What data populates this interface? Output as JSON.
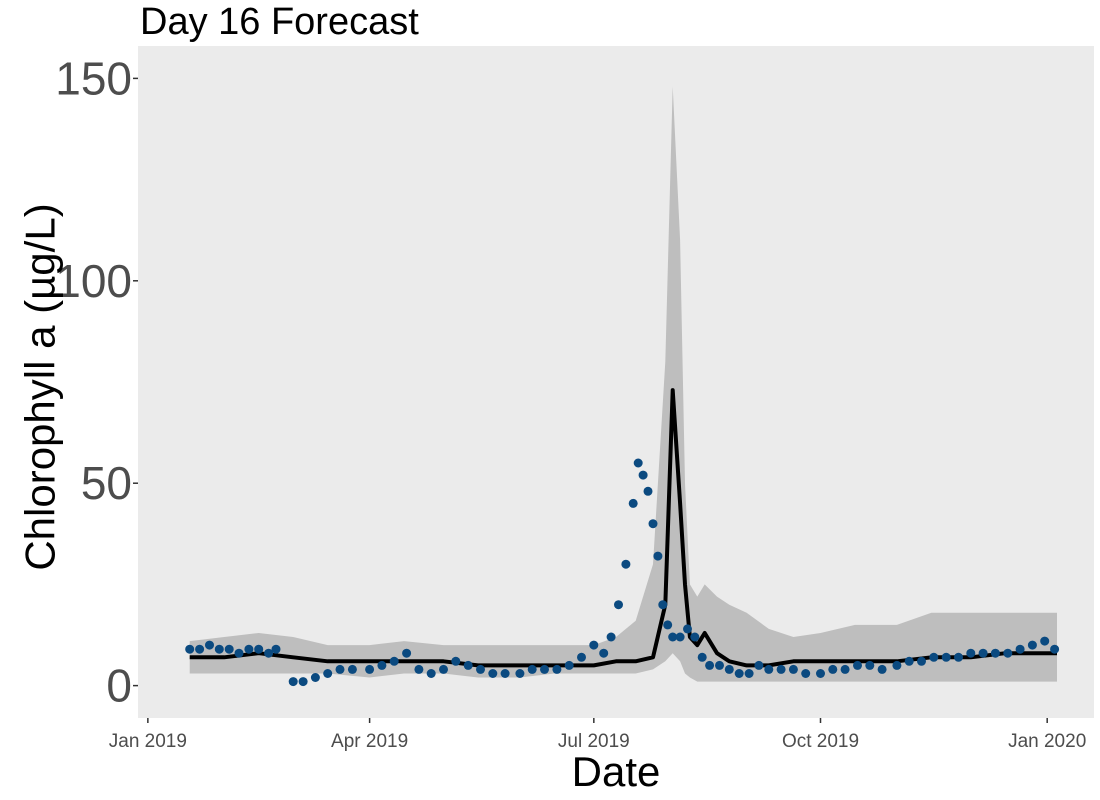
{
  "chart_data": {
    "type": "line",
    "title": "Day 16 Forecast",
    "xlabel": "Date",
    "ylabel": "Chlorophyll a (µg/L)",
    "xlim": [
      "2018-12-28",
      "2020-01-20"
    ],
    "ylim": [
      -8,
      158
    ],
    "grid": false,
    "legend": "none",
    "x_ticks": [
      {
        "date": "2019-01-01",
        "label": "Jan 2019"
      },
      {
        "date": "2019-04-01",
        "label": "Apr 2019"
      },
      {
        "date": "2019-07-01",
        "label": "Jul 2019"
      },
      {
        "date": "2019-10-01",
        "label": "Oct 2019"
      },
      {
        "date": "2020-01-01",
        "label": "Jan 2020"
      }
    ],
    "y_ticks": [
      {
        "value": 0,
        "label": "0"
      },
      {
        "value": 50,
        "label": "50"
      },
      {
        "value": 100,
        "label": "100"
      },
      {
        "value": 150,
        "label": "150"
      }
    ],
    "colors": {
      "panel": "#ebebeb",
      "band": "#bebebe",
      "line": "#000000",
      "points": "#0b4a80"
    },
    "series": [
      {
        "type": "area",
        "x": [
          "2019-01-18",
          "2019-02-01",
          "2019-02-15",
          "2019-03-01",
          "2019-03-15",
          "2019-04-01",
          "2019-04-15",
          "2019-05-01",
          "2019-05-15",
          "2019-06-01",
          "2019-06-15",
          "2019-07-01",
          "2019-07-10",
          "2019-07-18",
          "2019-07-25",
          "2019-07-30",
          "2019-08-02",
          "2019-08-05",
          "2019-08-07",
          "2019-08-09",
          "2019-08-12",
          "2019-08-15",
          "2019-08-20",
          "2019-08-25",
          "2019-09-01",
          "2019-09-10",
          "2019-09-20",
          "2019-10-01",
          "2019-10-15",
          "2019-11-01",
          "2019-11-15",
          "2019-12-01",
          "2019-12-15",
          "2020-01-05"
        ],
        "upper": [
          11,
          12,
          13,
          12,
          10,
          10,
          11,
          10,
          10,
          10,
          10,
          10,
          12,
          16,
          30,
          80,
          148,
          110,
          50,
          25,
          22,
          25,
          22,
          20,
          18,
          14,
          12,
          13,
          15,
          15,
          18,
          18,
          18,
          18
        ],
        "lower": [
          3,
          3,
          3,
          3,
          3,
          2,
          3,
          3,
          2,
          2,
          3,
          3,
          3,
          3,
          4,
          6,
          8,
          6,
          3,
          2,
          1,
          1,
          1,
          1,
          1,
          1,
          1,
          1,
          1,
          1,
          1,
          1,
          1,
          1
        ]
      },
      {
        "type": "line",
        "x": [
          "2019-01-18",
          "2019-02-01",
          "2019-02-15",
          "2019-03-01",
          "2019-03-15",
          "2019-04-01",
          "2019-04-15",
          "2019-05-01",
          "2019-05-15",
          "2019-06-01",
          "2019-06-15",
          "2019-07-01",
          "2019-07-10",
          "2019-07-18",
          "2019-07-25",
          "2019-07-30",
          "2019-08-02",
          "2019-08-05",
          "2019-08-07",
          "2019-08-09",
          "2019-08-12",
          "2019-08-15",
          "2019-08-20",
          "2019-08-25",
          "2019-09-01",
          "2019-09-10",
          "2019-09-20",
          "2019-10-01",
          "2019-10-15",
          "2019-11-01",
          "2019-11-15",
          "2019-12-01",
          "2019-12-15",
          "2020-01-05"
        ],
        "y": [
          7,
          7,
          8,
          7,
          6,
          6,
          6,
          6,
          5,
          5,
          5,
          5,
          6,
          6,
          7,
          20,
          73,
          45,
          25,
          12,
          10,
          13,
          8,
          6,
          5,
          5,
          6,
          6,
          6,
          6,
          7,
          7,
          8,
          8
        ]
      },
      {
        "type": "scatter",
        "x": [
          "2019-01-18",
          "2019-01-22",
          "2019-01-26",
          "2019-01-30",
          "2019-02-03",
          "2019-02-07",
          "2019-02-11",
          "2019-02-15",
          "2019-02-19",
          "2019-02-22",
          "2019-03-01",
          "2019-03-05",
          "2019-03-10",
          "2019-03-15",
          "2019-03-20",
          "2019-03-25",
          "2019-04-01",
          "2019-04-06",
          "2019-04-11",
          "2019-04-16",
          "2019-04-21",
          "2019-04-26",
          "2019-05-01",
          "2019-05-06",
          "2019-05-11",
          "2019-05-16",
          "2019-05-21",
          "2019-05-26",
          "2019-06-01",
          "2019-06-06",
          "2019-06-11",
          "2019-06-16",
          "2019-06-21",
          "2019-06-26",
          "2019-07-01",
          "2019-07-05",
          "2019-07-08",
          "2019-07-11",
          "2019-07-14",
          "2019-07-17",
          "2019-07-19",
          "2019-07-21",
          "2019-07-23",
          "2019-07-25",
          "2019-07-27",
          "2019-07-29",
          "2019-07-31",
          "2019-08-02",
          "2019-08-05",
          "2019-08-08",
          "2019-08-11",
          "2019-08-14",
          "2019-08-17",
          "2019-08-21",
          "2019-08-25",
          "2019-08-29",
          "2019-09-02",
          "2019-09-06",
          "2019-09-10",
          "2019-09-15",
          "2019-09-20",
          "2019-09-25",
          "2019-10-01",
          "2019-10-06",
          "2019-10-11",
          "2019-10-16",
          "2019-10-21",
          "2019-10-26",
          "2019-11-01",
          "2019-11-06",
          "2019-11-11",
          "2019-11-16",
          "2019-11-21",
          "2019-11-26",
          "2019-12-01",
          "2019-12-06",
          "2019-12-11",
          "2019-12-16",
          "2019-12-21",
          "2019-12-26",
          "2019-12-31",
          "2020-01-04"
        ],
        "y": [
          9,
          9,
          10,
          9,
          9,
          8,
          9,
          9,
          8,
          9,
          1,
          1,
          2,
          3,
          4,
          4,
          4,
          5,
          6,
          8,
          4,
          3,
          4,
          6,
          5,
          4,
          3,
          3,
          3,
          4,
          4,
          4,
          5,
          7,
          10,
          8,
          12,
          20,
          30,
          45,
          55,
          52,
          48,
          40,
          32,
          20,
          15,
          12,
          12,
          14,
          12,
          7,
          5,
          5,
          4,
          3,
          3,
          5,
          4,
          4,
          4,
          3,
          3,
          4,
          4,
          5,
          5,
          4,
          5,
          6,
          6,
          7,
          7,
          7,
          8,
          8,
          8,
          8,
          9,
          10,
          11,
          9
        ]
      }
    ]
  }
}
